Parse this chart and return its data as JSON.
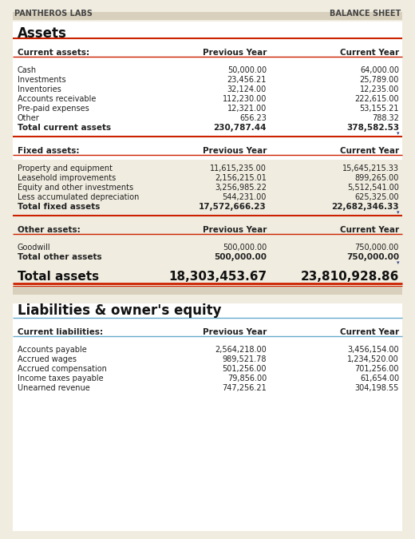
{
  "company": "PANTHEROS LABS",
  "doc_type": "BALANCE SHEET",
  "bg_color": "#f0ece0",
  "header_bar_color": "#d8d0bc",
  "white_section_color": "#ffffff",
  "red_line_color": "#cc2200",
  "blue_line_color": "#66aacc",
  "text_color": "#222222",
  "assets_section_title": "Assets",
  "liabilities_section_title": "Liabilities & owner's equity",
  "col_prev": "Previous Year",
  "col_curr": "Current Year",
  "current_assets_label": "Current assets:",
  "current_assets_rows": [
    [
      "Cash",
      "50,000.00",
      "64,000.00"
    ],
    [
      "Investments",
      "23,456.21",
      "25,789.00"
    ],
    [
      "Inventories",
      "32,124.00",
      "12,235.00"
    ],
    [
      "Accounts receivable",
      "112,230.00",
      "222,615.00"
    ],
    [
      "Pre-paid expenses",
      "12,321.00",
      "53,155.21"
    ],
    [
      "Other",
      "656.23",
      "788.32"
    ]
  ],
  "total_current_assets": [
    "Total current assets",
    "230,787.44",
    "378,582.53"
  ],
  "fixed_assets_label": "Fixed assets:",
  "fixed_assets_rows": [
    [
      "Property and equipment",
      "11,615,235.00",
      "15,645,215.33"
    ],
    [
      "Leasehold improvements",
      "2,156,215.01",
      "899,265.00"
    ],
    [
      "Equity and other investments",
      "3,256,985.22",
      "5,512,541.00"
    ],
    [
      "Less accumulated depreciation",
      "544,231.00",
      "625,325.00"
    ]
  ],
  "total_fixed_assets": [
    "Total fixed assets",
    "17,572,666.23",
    "22,682,346.33"
  ],
  "other_assets_label": "Other assets:",
  "other_assets_rows": [
    [
      "Goodwill",
      "500,000.00",
      "750,000.00"
    ]
  ],
  "total_other_assets": [
    "Total other assets",
    "500,000.00",
    "750,000.00"
  ],
  "total_assets": [
    "Total assets",
    "18,303,453.67",
    "23,810,928.86"
  ],
  "current_liabilities_label": "Current liabilities:",
  "current_liabilities_rows": [
    [
      "Accounts payable",
      "2,564,218.00",
      "3,456,154.00"
    ],
    [
      "Accrued wages",
      "989,521.78",
      "1,234,520.00"
    ],
    [
      "Accrued compensation",
      "501,256.00",
      "701,256.00"
    ],
    [
      "Income taxes payable",
      "79,856.00",
      "61,654.00"
    ],
    [
      "Unearned revenue",
      "747,256.21",
      "304,198.55"
    ]
  ]
}
